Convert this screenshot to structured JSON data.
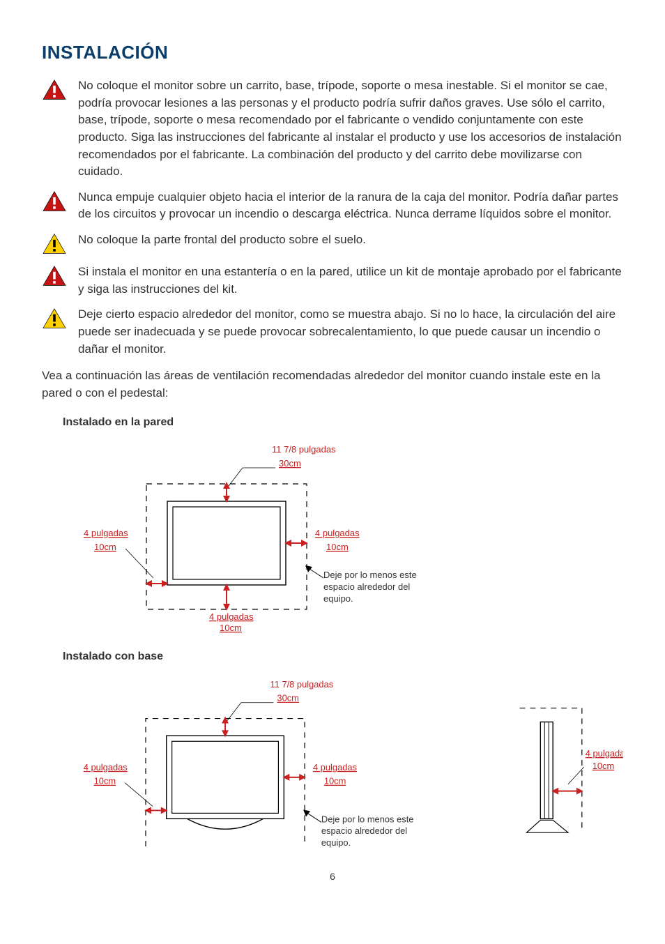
{
  "title": "INSTALACIÓN",
  "warnings": [
    {
      "icon": "red",
      "text": "No coloque el monitor sobre un carrito, base, trípode, soporte o mesa inestable.  Si el monitor se cae, podría provocar lesiones a las personas y el producto podría sufrir daños graves.  Use sólo el carrito, base, trípode, soporte o mesa recomendado por el fabricante o vendido conjuntamente con este producto.  Siga las instrucciones del fabricante al instalar el producto y use los accesorios de instalación recomendados por el fabricante. La combinación del producto y del carrito debe movilizarse con cuidado."
    },
    {
      "icon": "red",
      "text": "Nunca empuje cualquier objeto hacia el interior de la ranura de la caja del monitor. Podría dañar partes de los circuitos y provocar un incendio o descarga eléctrica.  Nunca derrame líquidos sobre el monitor."
    },
    {
      "icon": "yellow",
      "text": "No coloque la parte frontal del producto sobre el suelo."
    },
    {
      "icon": "red",
      "text": "Si instala el monitor en una estantería o en la pared, utilice un kit de montaje aprobado por el fabricante y siga las instrucciones del kit."
    },
    {
      "icon": "yellow",
      "text": "Deje cierto espacio alrededor del monitor, como se muestra abajo.  Si no lo hace, la circulación del aire puede ser inadecuada y se puede provocar sobrecalentamiento, lo que puede causar un incendio o dañar el monitor."
    }
  ],
  "lead": "Vea a continuación las áreas de ventilación recomendadas alrededor del monitor cuando instale este en la pared o con el pedestal:",
  "diagram1_title": "Instalado en la pared",
  "diagram2_title": "Instalado con base",
  "labels": {
    "top_in": "11 7/8 pulgadas",
    "top_cm": "30cm",
    "side_in": "4 pulgadas",
    "side_cm": "10cm",
    "bottom_in": "4 pulgadas",
    "bottom_cm": "10cm",
    "note": "Deje por lo menos este espacio alrededor del equipo."
  },
  "colors": {
    "red": "#c41414",
    "border_red": "#c92020",
    "yellow": "#ffd000",
    "blue": "#0b3d6b",
    "text": "#333333",
    "diagram_stroke": "#000000"
  },
  "page_number": "6"
}
